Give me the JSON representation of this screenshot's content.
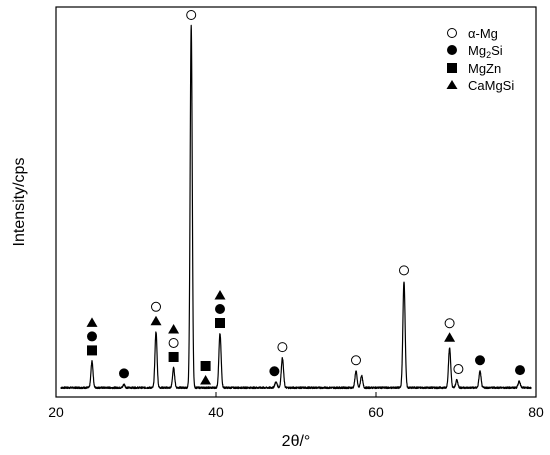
{
  "chart_data": {
    "type": "line",
    "title": "",
    "xlabel": "2θ/°",
    "ylabel": "Intensity/cps",
    "xlim": [
      20,
      80
    ],
    "x_ticks": [
      20,
      40,
      60,
      80
    ],
    "x_tick_labels": [
      "20",
      "40",
      "60",
      "80"
    ],
    "y_ticks_visible": false,
    "grid": false,
    "legend_position": "top-right",
    "legend": [
      {
        "label": "α-Mg",
        "marker": "open-circle"
      },
      {
        "label_main": "Mg",
        "label_sub": "2",
        "label_tail": "Si",
        "marker": "filled-circle"
      },
      {
        "label": "MgZn",
        "marker": "filled-square"
      },
      {
        "label": "CaMgSi",
        "marker": "filled-triangle"
      }
    ],
    "baseline_intensity": 3,
    "peaks": [
      {
        "x": 24.5,
        "h": 24,
        "w": 0.13
      },
      {
        "x": 28.5,
        "h": 3,
        "w": 0.12
      },
      {
        "x": 32.5,
        "h": 51,
        "w": 0.13
      },
      {
        "x": 34.7,
        "h": 18,
        "w": 0.13
      },
      {
        "x": 36.9,
        "h": 330,
        "w": 0.13
      },
      {
        "x": 40.5,
        "h": 49,
        "w": 0.14
      },
      {
        "x": 47.5,
        "h": 5,
        "w": 0.15
      },
      {
        "x": 48.3,
        "h": 27,
        "w": 0.14
      },
      {
        "x": 57.5,
        "h": 15,
        "w": 0.13
      },
      {
        "x": 58.2,
        "h": 11,
        "w": 0.13
      },
      {
        "x": 63.5,
        "h": 97,
        "w": 0.14
      },
      {
        "x": 69.2,
        "h": 36,
        "w": 0.14
      },
      {
        "x": 70.1,
        "h": 7,
        "w": 0.13
      },
      {
        "x": 73.0,
        "h": 15,
        "w": 0.13
      },
      {
        "x": 77.9,
        "h": 6,
        "w": 0.13
      }
    ],
    "markers": [
      {
        "x": 24.5,
        "stack": [
          "filled-square",
          "filled-circle",
          "filled-triangle"
        ]
      },
      {
        "x": 28.5,
        "stack": [
          "filled-circle"
        ]
      },
      {
        "x": 32.5,
        "stack": [
          "filled-triangle",
          "open-circle"
        ]
      },
      {
        "x": 34.7,
        "stack": [
          "filled-square",
          "open-circle",
          "filled-triangle"
        ]
      },
      {
        "x": 36.9,
        "stack": [
          "open-circle"
        ]
      },
      {
        "x": 38.7,
        "stack": [
          "filled-triangle",
          "filled-square"
        ]
      },
      {
        "x": 40.5,
        "stack": [
          "filled-square",
          "filled-circle",
          "filled-triangle"
        ]
      },
      {
        "x": 47.3,
        "stack": [
          "filled-circle"
        ]
      },
      {
        "x": 48.3,
        "stack": [
          "open-circle"
        ]
      },
      {
        "x": 57.5,
        "stack": [
          "open-circle"
        ]
      },
      {
        "x": 63.5,
        "stack": [
          "open-circle"
        ]
      },
      {
        "x": 69.2,
        "stack": [
          "filled-triangle",
          "open-circle"
        ]
      },
      {
        "x": 70.3,
        "stack": [
          "open-circle"
        ]
      },
      {
        "x": 73.0,
        "stack": [
          "filled-circle"
        ]
      },
      {
        "x": 78.0,
        "stack": [
          "filled-circle"
        ]
      }
    ]
  }
}
